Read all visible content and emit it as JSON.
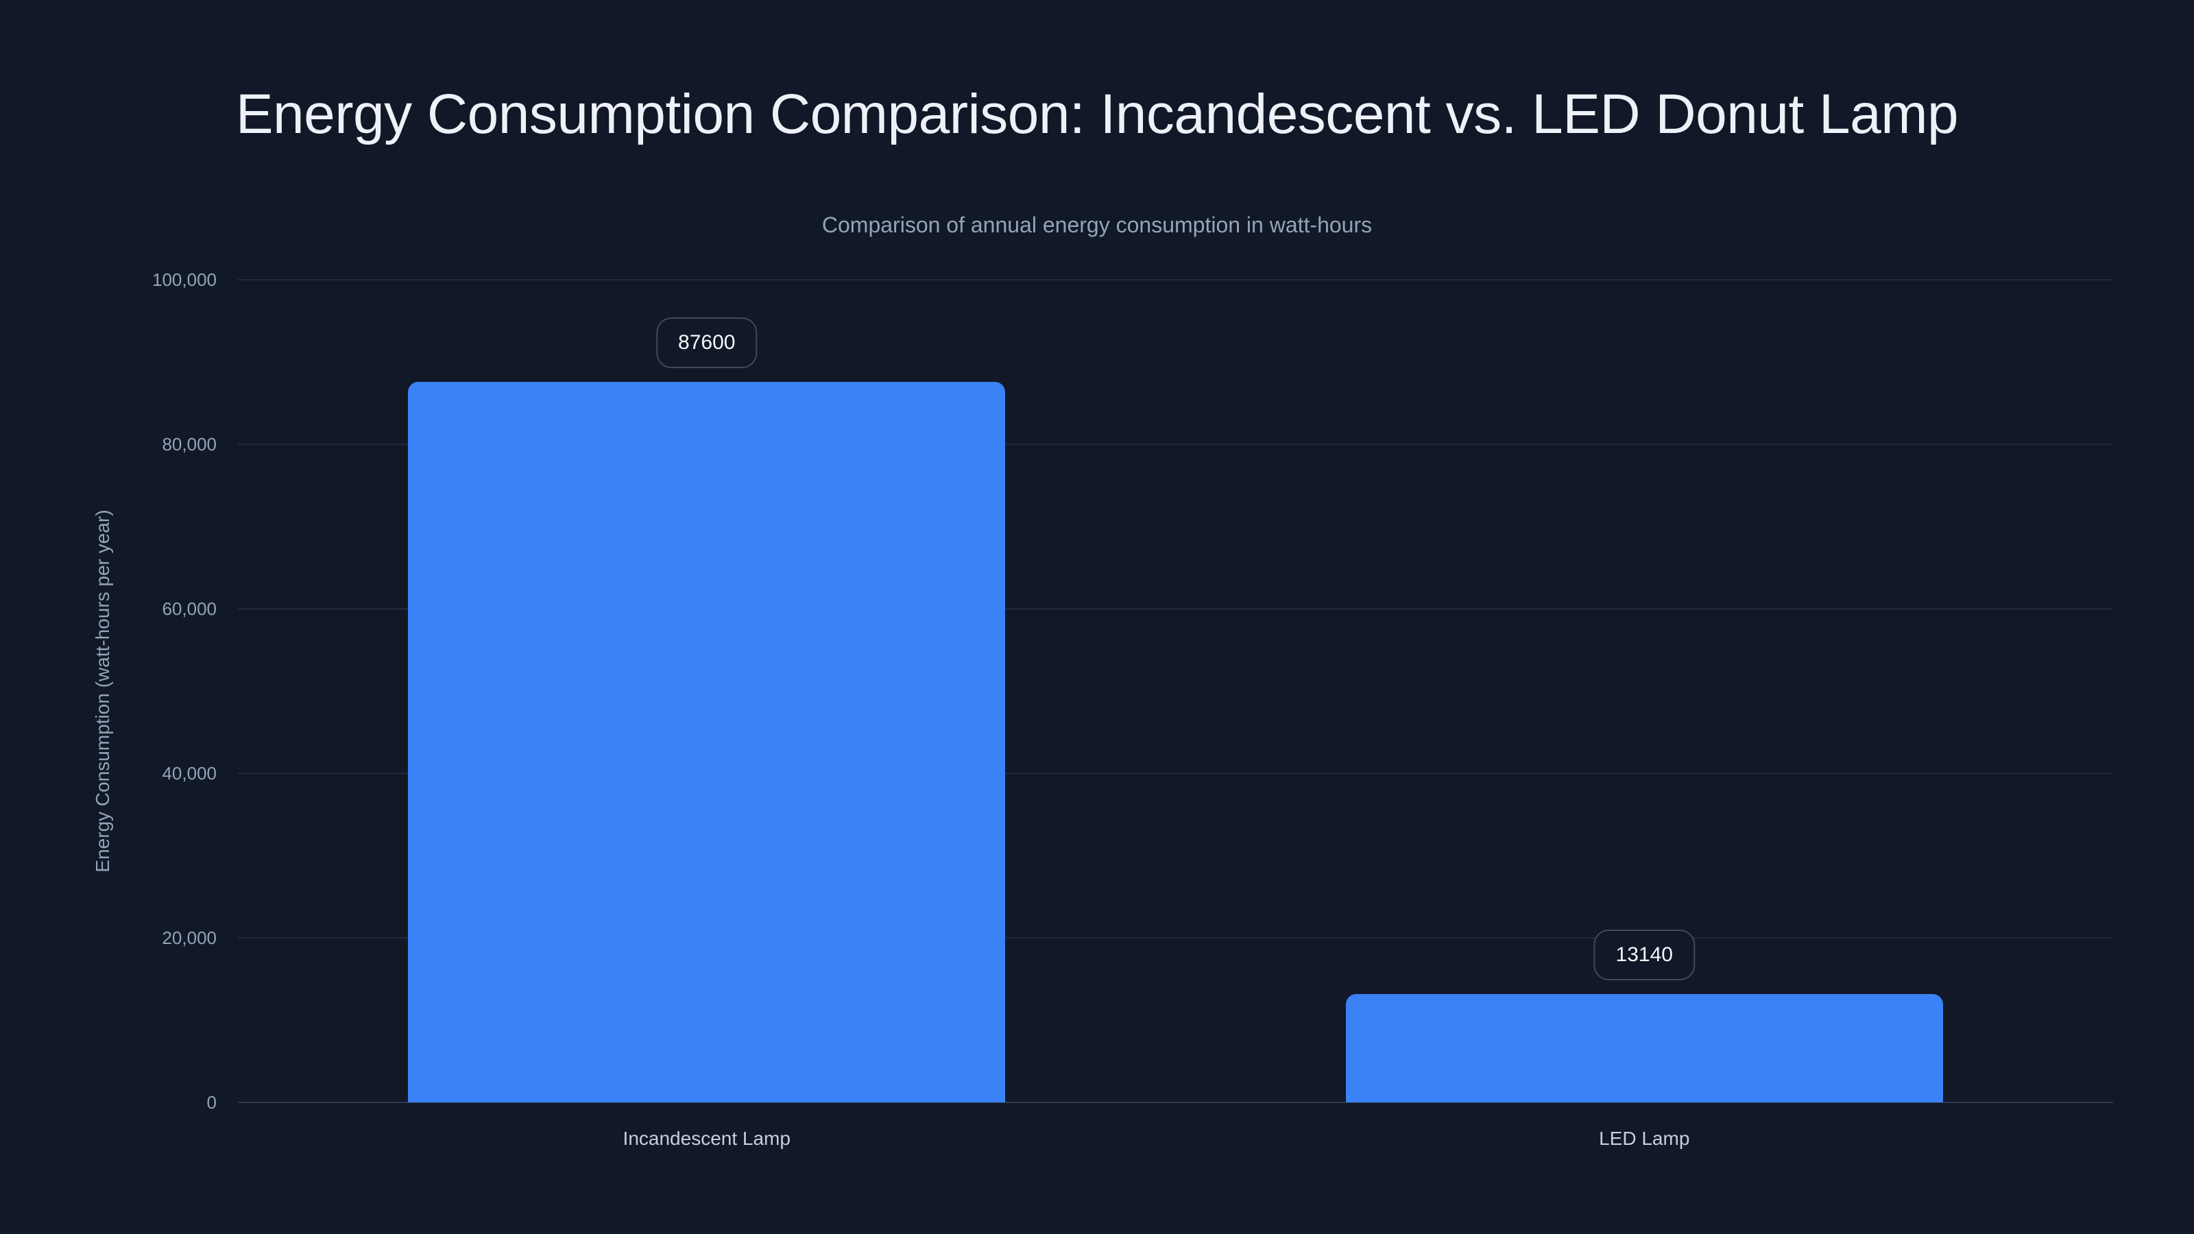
{
  "page": {
    "background": "#111827"
  },
  "chart_data": {
    "type": "bar",
    "title": "Energy Consumption Comparison: Incandescent vs. LED Donut Lamp",
    "subtitle": "Comparison of annual energy consumption in watt-hours",
    "categories": [
      "Incandescent Lamp",
      "LED Lamp"
    ],
    "values": [
      87600,
      13140
    ],
    "value_labels": [
      "87600",
      "13140"
    ],
    "xlabel": "",
    "ylabel": "Energy Consumption (watt-hours per year)",
    "ylim": [
      0,
      100000
    ],
    "yticks": [
      0,
      20000,
      40000,
      60000,
      80000,
      100000
    ],
    "ytick_labels": [
      "0",
      "20,000",
      "40,000",
      "60,000",
      "80,000",
      "100,000"
    ],
    "grid": true,
    "legend": false,
    "colors": {
      "background": "#111827",
      "bar": "#3b82f6",
      "title_text": "#eef2f8",
      "subtitle_text": "#94a3b8",
      "axis_tick_text": "#94a3b8",
      "category_text": "#c6cfdb",
      "value_text": "#f4f7fb",
      "value_border": "#3e4a5e",
      "gridline": "#1f2a3d",
      "axis_line": "#2e3b52"
    }
  }
}
